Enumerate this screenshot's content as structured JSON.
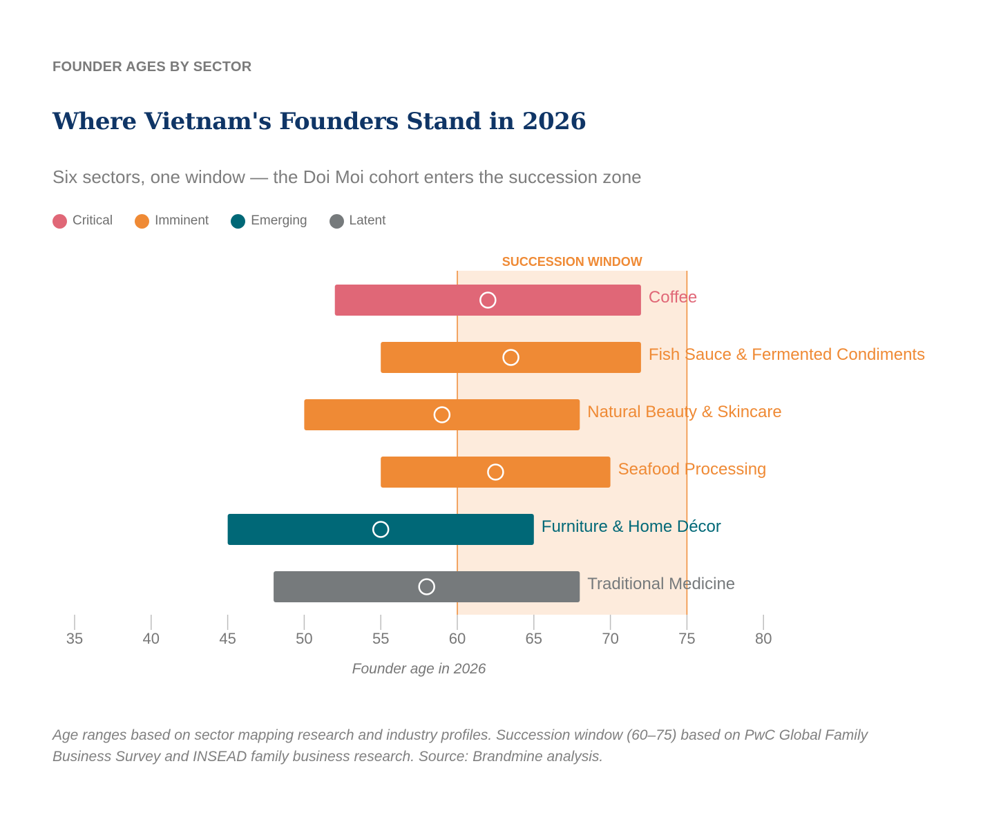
{
  "header": {
    "kicker": "FOUNDER AGES BY SECTOR",
    "title": "Where Vietnam's Founders Stand in 2026",
    "subtitle": "Six sectors, one window — the Doi Moi cohort enters the succession zone"
  },
  "legend": [
    {
      "label": "Critical",
      "color": "#e06777"
    },
    {
      "label": "Imminent",
      "color": "#ef8a35"
    },
    {
      "label": "Emerging",
      "color": "#006877"
    },
    {
      "label": "Latent",
      "color": "#767a7c"
    }
  ],
  "chart_data": {
    "type": "range-bar",
    "xlabel": "Founder age in 2026",
    "xlim": [
      35,
      80
    ],
    "xticks": [
      "35",
      "40",
      "45",
      "50",
      "55",
      "60",
      "65",
      "70",
      "75",
      "80"
    ],
    "window": {
      "label": "SUCCESSION WINDOW",
      "start": 60,
      "end": 75,
      "color": "#ef8a35"
    },
    "series": [
      {
        "name": "Coffee",
        "status": "Critical",
        "start": 52,
        "end": 72,
        "median": 62,
        "color": "#e06777"
      },
      {
        "name": "Fish Sauce & Fermented Condiments",
        "status": "Imminent",
        "start": 55,
        "end": 72,
        "median": 63.5,
        "color": "#ef8a35"
      },
      {
        "name": "Natural Beauty & Skincare",
        "status": "Imminent",
        "start": 50,
        "end": 68,
        "median": 59,
        "color": "#ef8a35"
      },
      {
        "name": "Seafood Processing",
        "status": "Imminent",
        "start": 55,
        "end": 70,
        "median": 62.5,
        "color": "#ef8a35"
      },
      {
        "name": "Furniture & Home Décor",
        "status": "Emerging",
        "start": 45,
        "end": 65,
        "median": 55,
        "color": "#006877"
      },
      {
        "name": "Traditional Medicine",
        "status": "Latent",
        "start": 48,
        "end": 68,
        "median": 58,
        "color": "#767a7c"
      }
    ]
  },
  "footnote": "Age ranges based on sector mapping research and industry profiles. Succession window (60–75) based on PwC Global Family Business Survey and INSEAD family business research. Source: Brandmine analysis."
}
